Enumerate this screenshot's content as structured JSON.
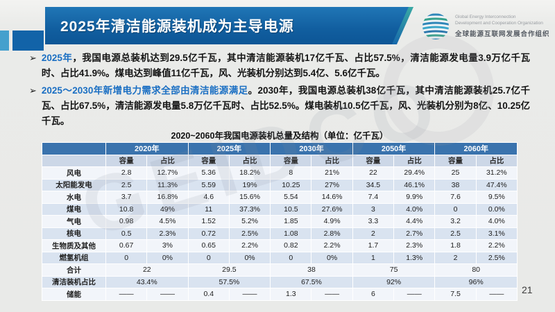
{
  "header": {
    "title": "2025年清洁能源装机成为主导电源"
  },
  "logo": {
    "line1": "Global Energy Interconnection",
    "line2": "Development and Cooperation Organization",
    "line3": "全球能源互联网发展合作组织"
  },
  "watermark": "GEIDCO",
  "bullets": [
    {
      "marker": "➢",
      "highlight": "2025年",
      "rest": "，我国电源总装机达到29.5亿千瓦，其中清洁能源装机17亿千瓦、占比57.5%，清洁能源发电量3.9万亿千瓦时、占比41.9%。煤电达到峰值11亿千瓦，风、光装机分别达到5.4亿、5.6亿千瓦。"
    },
    {
      "marker": "➢",
      "highlight": "2025～2030年新增电力需求全部由清洁能源满足",
      "rest": "。2030年，我国电源总装机38亿千瓦，其中清洁能源装机25.7亿千瓦、占比67.5%，清洁能源发电量5.8万亿千瓦时、占比52.5%。煤电装机10.5亿千瓦，风、光装机分别为8亿、10.25亿千瓦。"
    }
  ],
  "table": {
    "title": "2020~2060年我国电源装机总量及结构（单位：亿千瓦）",
    "years": [
      "2020年",
      "2025年",
      "2030年",
      "2050年",
      "2060年"
    ],
    "subheaders": [
      "容量",
      "占比"
    ],
    "rows": [
      {
        "label": "风电",
        "merged": false,
        "values": [
          "2.8",
          "12.7%",
          "5.36",
          "18.2%",
          "8",
          "21%",
          "22",
          "29.4%",
          "25",
          "31.2%"
        ]
      },
      {
        "label": "太阳能发电",
        "merged": false,
        "values": [
          "2.5",
          "11.3%",
          "5.59",
          "19%",
          "10.25",
          "27%",
          "34.5",
          "46.1%",
          "38",
          "47.4%"
        ]
      },
      {
        "label": "水电",
        "merged": false,
        "values": [
          "3.7",
          "16.8%",
          "4.6",
          "15.6%",
          "5.54",
          "14.6%",
          "7.4",
          "9.9%",
          "7.6",
          "9.5%"
        ]
      },
      {
        "label": "煤电",
        "merged": false,
        "values": [
          "10.8",
          "49%",
          "11",
          "37.3%",
          "10.5",
          "27.6%",
          "3",
          "4.0%",
          "0",
          "0.0%"
        ]
      },
      {
        "label": "气电",
        "merged": false,
        "values": [
          "0.98",
          "4.5%",
          "1.52",
          "5.2%",
          "1.85",
          "4.9%",
          "3.3",
          "4.4%",
          "3.2",
          "4.0%"
        ]
      },
      {
        "label": "核电",
        "merged": false,
        "values": [
          "0.5",
          "2.3%",
          "0.72",
          "2.5%",
          "1.08",
          "2.8%",
          "2",
          "2.7%",
          "2.5",
          "3.1%"
        ]
      },
      {
        "label": "生物质及其他",
        "merged": false,
        "values": [
          "0.67",
          "3%",
          "0.65",
          "2.2%",
          "0.82",
          "2.2%",
          "1.7",
          "2.3%",
          "1.8",
          "2.2%"
        ]
      },
      {
        "label": "燃氢机组",
        "merged": false,
        "values": [
          "0",
          "0%",
          "0",
          "0%",
          "0",
          "0%",
          "1",
          "1.3%",
          "2",
          "2.5%"
        ]
      },
      {
        "label": "合计",
        "merged": true,
        "values": [
          "22",
          "29.5",
          "38",
          "75",
          "80"
        ]
      },
      {
        "label": "清洁装机占比",
        "merged": true,
        "values": [
          "43.4%",
          "57.5%",
          "67.5%",
          "92%",
          "96%"
        ]
      },
      {
        "label": "储能",
        "merged": false,
        "values": [
          "——",
          "——",
          "0.4",
          "——",
          "1.3",
          "——",
          "6",
          "——",
          "7.5",
          "——"
        ]
      }
    ]
  },
  "page_number": "21",
  "colors": {
    "title_bar_blue": "#115e9f",
    "accent_square_dark": "#1263a8",
    "accent_square_light": "#45a0cd",
    "highlight_text_blue": "#1b6fc3",
    "table_header_blue": "#3a73ad",
    "table_subheader": "#ccd7e7",
    "table_band_light": "#f2f5fa",
    "table_band_blue": "#d9e3f0"
  }
}
